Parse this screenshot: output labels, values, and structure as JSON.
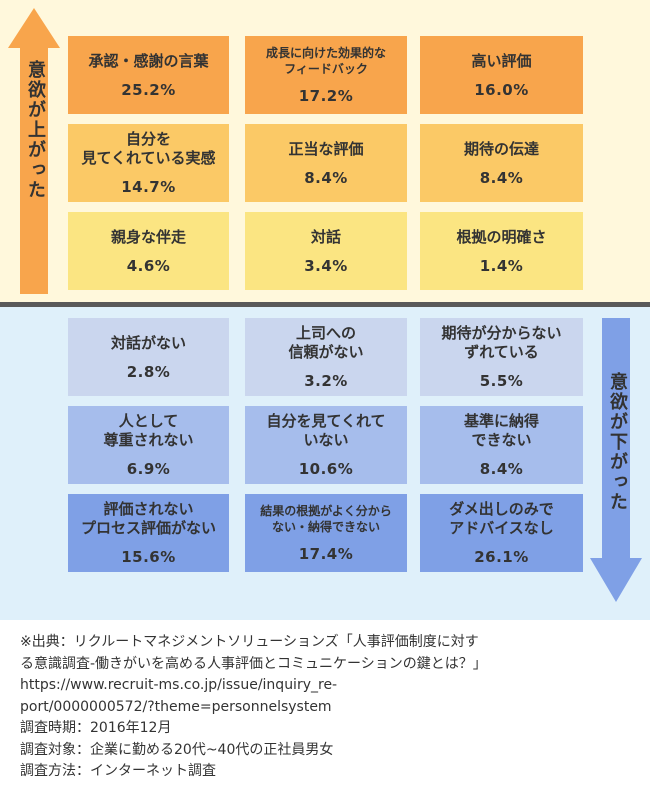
{
  "chart_data": {
    "type": "table",
    "sections": [
      {
        "label": "意欲が上がった",
        "items": [
          {
            "label": "承認・感謝の言葉",
            "value": "25.2%",
            "color": "#f8a54c"
          },
          {
            "label": "成長に向けた効果的な\nフィードバック",
            "value": "17.2%",
            "color": "#f8a54c"
          },
          {
            "label": "高い評価",
            "value": "16.0%",
            "color": "#f8a54c"
          },
          {
            "label": "自分を\n見てくれている実感",
            "value": "14.7%",
            "color": "#fbc966"
          },
          {
            "label": "正当な評価",
            "value": "8.4%",
            "color": "#fbc966"
          },
          {
            "label": "期待の伝達",
            "value": "8.4%",
            "color": "#fbc966"
          },
          {
            "label": "親身な伴走",
            "value": "4.6%",
            "color": "#fbe582"
          },
          {
            "label": "対話",
            "value": "3.4%",
            "color": "#fbe582"
          },
          {
            "label": "根拠の明確さ",
            "value": "1.4%",
            "color": "#fbe582"
          }
        ]
      },
      {
        "label": "意欲が下がった",
        "items": [
          {
            "label": "対話がない",
            "value": "2.8%",
            "color": "#cad6ee"
          },
          {
            "label": "上司への\n信頼がない",
            "value": "3.2%",
            "color": "#cad6ee"
          },
          {
            "label": "期待が分からない\nずれている",
            "value": "5.5%",
            "color": "#cad6ee"
          },
          {
            "label": "人として\n尊重されない",
            "value": "6.9%",
            "color": "#a6bdec"
          },
          {
            "label": "自分を見てくれて\nいない",
            "value": "10.6%",
            "color": "#a6bdec"
          },
          {
            "label": "基準に納得\nできない",
            "value": "8.4%",
            "color": "#a6bdec"
          },
          {
            "label": "評価されない\nプロセス評価がない",
            "value": "15.6%",
            "color": "#7fa0e6"
          },
          {
            "label": "結果の根拠がよく分から\nない・納得できない",
            "value": "17.4%",
            "color": "#7fa0e6"
          },
          {
            "label": "ダメ出しのみで\nアドバイスなし",
            "value": "26.1%",
            "color": "#7fa0e6"
          }
        ]
      }
    ]
  },
  "source": {
    "lines": [
      "※出典：リクルートマネジメントソリューションズ「人事評価制度に対す",
      "る意識調査-働きがいを高める人事評価とコミュニケーションの鍵とは？」",
      "https://www.recruit-ms.co.jp/issue/inquiry_re-",
      "port/0000000572/?theme=personnelsystem",
      "調査時期：2016年12月",
      "調査対象：企業に勤める20代~40代の正社員男女",
      "調査方法：インターネット調査"
    ]
  },
  "colors": {
    "top_bg": "#fff8dc",
    "bottom_bg": "#dff0fa",
    "divider": "#595959",
    "up_arrow": "#f8a54c",
    "down_arrow": "#7fa0e6"
  }
}
